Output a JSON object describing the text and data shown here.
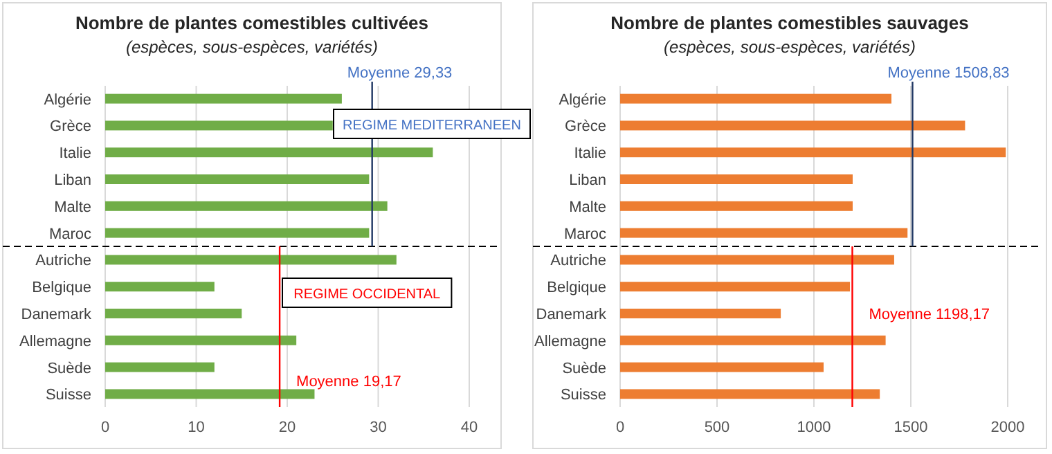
{
  "chart_data": [
    {
      "type": "bar",
      "orientation": "horizontal",
      "title": "Nombre de plantes comestibles cultivées",
      "subtitle": "(espèces, sous-espèces, variétés)",
      "categories": [
        "Algérie",
        "Grèce",
        "Italie",
        "Liban",
        "Malte",
        "Maroc",
        "Autriche",
        "Belgique",
        "Danemark",
        "Allemagne",
        "Suède",
        "Suisse"
      ],
      "values": [
        26,
        25,
        36,
        29,
        31,
        29,
        32,
        12,
        15,
        21,
        12,
        23
      ],
      "color": "#70ad47",
      "xlim": [
        0,
        40
      ],
      "xticks": [
        0,
        10,
        20,
        30,
        40
      ],
      "grid": "x",
      "ref_lines": [
        {
          "axis": "x",
          "value": 29.33,
          "label": "Moyenne 29,33",
          "color": "#203864"
        },
        {
          "axis": "x",
          "value": 19.17,
          "label": "Moyenne 19,17",
          "color": "#ff0000"
        }
      ],
      "annotations": [
        "REGIME MEDITERRANEEN",
        "REGIME OCCIDENTAL"
      ]
    },
    {
      "type": "bar",
      "orientation": "horizontal",
      "title": "Nombre de plantes comestibles sauvages",
      "subtitle": "(espèces, sous-espèces, variétés)",
      "categories": [
        "Algérie",
        "Grèce",
        "Italie",
        "Liban",
        "Malte",
        "Maroc",
        "Autriche",
        "Belgique",
        "Danemark",
        "Allemagne",
        "Suède",
        "Suisse"
      ],
      "values": [
        1400,
        1780,
        1990,
        1200,
        1200,
        1483,
        1414,
        1186,
        829,
        1370,
        1050,
        1340
      ],
      "color": "#ed7d31",
      "xlim": [
        0,
        2000
      ],
      "xticks": [
        0,
        500,
        1000,
        1500,
        2000
      ],
      "grid": "x",
      "ref_lines": [
        {
          "axis": "x",
          "value": 1508.83,
          "label": "Moyenne 1508,83",
          "color": "#203864"
        },
        {
          "axis": "x",
          "value": 1198.17,
          "label": "Moyenne 1198,17",
          "color": "#ff0000"
        }
      ]
    }
  ]
}
